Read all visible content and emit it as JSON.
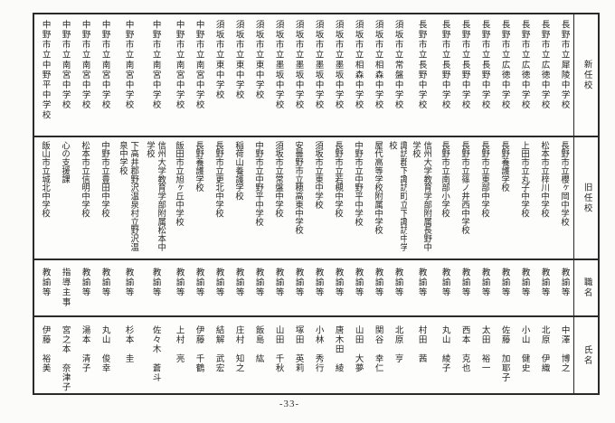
{
  "page": {
    "page_number": "-33-"
  },
  "table": {
    "headers": {
      "new_school": "新任校",
      "old_school": "旧任校",
      "job_title": "職名",
      "name": "氏名"
    },
    "people": [
      {
        "new_school": "長野市立犀陵中学校",
        "old_school": "長野市立櫻ヶ岡中学校",
        "title": "教諭等",
        "name": "中澤　博之"
      },
      {
        "new_school": "長野市立広徳中学校",
        "old_school": "松本市立梓川中学校",
        "title": "教諭等",
        "name": "北原　伊織"
      },
      {
        "new_school": "長野市立広徳中学校",
        "old_school": "上田市立丸子中学校",
        "title": "教諭等",
        "name": "小山　健史"
      },
      {
        "new_school": "長野市立広徳中学校",
        "old_school": "長野養護学校",
        "title": "教諭等",
        "name": "佐藤　加耶子"
      },
      {
        "new_school": "長野市立長野中学校",
        "old_school": "長野市立東部中学校",
        "title": "教諭等",
        "name": "太田　裕一"
      },
      {
        "new_school": "長野市立長野中学校",
        "old_school": "長野市立篠ノ井西中学校",
        "title": "教諭等",
        "name": "西本　克也"
      },
      {
        "new_school": "長野市立長野中学校",
        "old_school": "長野市立南部小学校",
        "title": "教諭等",
        "name": "丸山　綾子"
      },
      {
        "new_school": "長野市立長野中学校",
        "old_school": "信州大学教育学部附属長野中学校",
        "title": "教諭等",
        "name": "村田　茜"
      },
      {
        "new_school": "須坂市立常盤中学校",
        "old_school": "諏訪郡下諏訪町立下諏訪中学校",
        "title": "教諭等",
        "name": "北原　亨"
      },
      {
        "new_school": "須坂市立相森中学校",
        "old_school": "屋代高等学校附属中学校",
        "title": "教諭等",
        "name": "関谷　幸仁"
      },
      {
        "new_school": "須坂市立相森中学校",
        "old_school": "中野市立中野平中学校",
        "title": "教諭等",
        "name": "山田　大夢"
      },
      {
        "new_school": "須坂市立墨坂中学校",
        "old_school": "長野市立若槻中学校",
        "title": "教諭等",
        "name": "唐木田　綾"
      },
      {
        "new_school": "須坂市立墨坂中学校",
        "old_school": "須坂市立東中学校",
        "title": "教諭等",
        "name": "小林　秀行"
      },
      {
        "new_school": "須坂市立墨坂中学校",
        "old_school": "安曇野市立穂高東中学校",
        "title": "教諭等",
        "name": "塚田　英莉"
      },
      {
        "new_school": "須坂市立墨坂中学校",
        "old_school": "須坂市立常盤中学校",
        "title": "教諭等",
        "name": "山田　千秋"
      },
      {
        "new_school": "須坂市立東中学校",
        "old_school": "中野市立中野平中学校",
        "title": "教諭等",
        "name": "飯島　紘"
      },
      {
        "new_school": "須坂市立東中学校",
        "old_school": "稲荷山養護学校",
        "title": "教諭等",
        "name": "庄村　知之"
      },
      {
        "new_school": "須坂市立東中学校",
        "old_school": "長野市立更北中学校",
        "title": "教諭等",
        "name": "結解　武宏"
      },
      {
        "new_school": "中野市立南宮中学校",
        "old_school": "長野養護学校",
        "title": "教諭等",
        "name": "伊藤　千鶴"
      },
      {
        "new_school": "中野市立南宮中学校",
        "old_school": "飯田市立旭ヶ丘中学校",
        "title": "教諭等",
        "name": "上村　亮"
      },
      {
        "new_school": "中野市立南宮中学校",
        "old_school": "信州大学教育学部附属松本中学校",
        "title": "教諭等",
        "name": "佐々木　蒼斗"
      },
      {
        "new_school": "中野市立南宮中学校",
        "old_school": "下高井郡野沢温泉村立野沢温泉中学校",
        "title": "教諭等",
        "name": "杉本　圭"
      },
      {
        "new_school": "中野市立南宮中学校",
        "old_school": "中野市立豊田中学校",
        "title": "教諭等",
        "name": "丸山　俊幸"
      },
      {
        "new_school": "中野市立南宮中学校",
        "old_school": "松本市立信明中学校",
        "title": "教諭等",
        "name": "湯本　清子"
      },
      {
        "new_school": "中野市立南宮中学校",
        "old_school": "心の支援課",
        "title": "指導主事",
        "name": "宮之本　奈津子"
      },
      {
        "new_school": "中野市立中野平中学校",
        "old_school": "飯山市立城北中学校",
        "title": "教諭等",
        "name": "伊藤　裕美"
      }
    ]
  }
}
